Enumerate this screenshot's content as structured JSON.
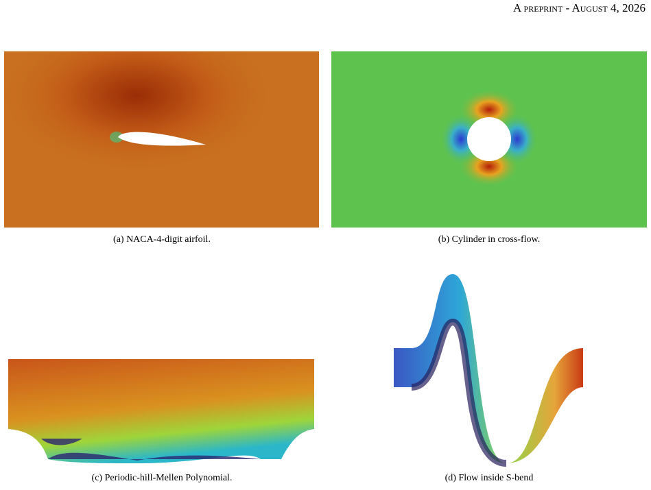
{
  "header": {
    "running_head": "A preprint - August 4, 2026"
  },
  "figures": [
    {
      "caption": "(a) NACA-4-digit airfoil."
    },
    {
      "caption": "(b) Cylinder in cross-flow."
    },
    {
      "caption": "(c) Periodic-hill-Mellen Polynomial."
    },
    {
      "caption": "(d) Flow inside S-bend"
    }
  ]
}
